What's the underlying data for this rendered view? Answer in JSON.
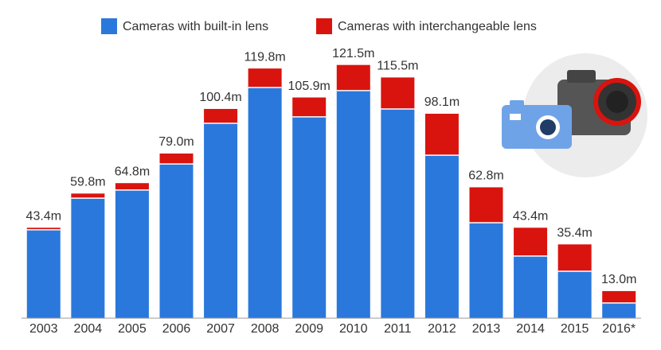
{
  "chart_data": {
    "type": "stacked-bar",
    "categories": [
      "2003",
      "2004",
      "2005",
      "2006",
      "2007",
      "2008",
      "2009",
      "2010",
      "2011",
      "2012",
      "2013",
      "2014",
      "2015",
      "2016*"
    ],
    "series": [
      {
        "name": "Cameras with built-in lens",
        "color": "#2a78dc",
        "values": [
          42.4,
          57.6,
          61.5,
          74.0,
          93.5,
          110.7,
          96.6,
          109.2,
          100.4,
          78.2,
          45.8,
          29.8,
          22.5,
          7.3
        ]
      },
      {
        "name": "Cameras with interchangeable lens",
        "color": "#d9140e",
        "values": [
          1.0,
          2.2,
          3.3,
          5.0,
          6.9,
          9.1,
          9.3,
          12.3,
          15.1,
          19.9,
          17.0,
          13.6,
          12.9,
          5.7
        ]
      }
    ],
    "totals": [
      43.4,
      59.8,
      64.8,
      79.0,
      100.4,
      119.8,
      105.9,
      121.5,
      115.5,
      98.1,
      62.8,
      43.4,
      35.4,
      13.0
    ],
    "total_labels": [
      "43.4m",
      "59.8m",
      "64.8m",
      "79.0m",
      "100.4m",
      "119.8m",
      "105.9m",
      "121.5m",
      "115.5m",
      "98.1m",
      "62.8m",
      "43.4m",
      "35.4m",
      "13.0m"
    ],
    "ylim": [
      0,
      130
    ]
  }
}
